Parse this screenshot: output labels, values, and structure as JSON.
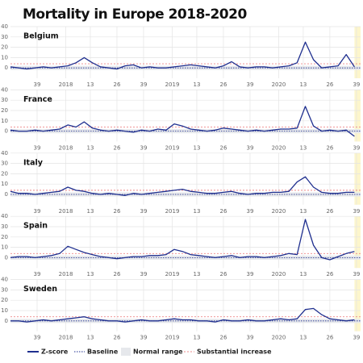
{
  "title": "Mortality in Europe  2018-2020",
  "legend": [
    "Z-score",
    "Baseline",
    "Normal range",
    "Substantial increase"
  ],
  "chart_data": [
    {
      "type": "line",
      "title": "Belgium",
      "color": "#1f2f8f",
      "x": [
        0,
        4,
        8,
        12,
        16,
        20,
        24,
        28,
        32,
        36,
        40,
        44,
        48,
        52,
        56,
        60,
        64,
        68,
        72,
        76,
        80,
        84,
        88,
        92,
        96,
        100,
        104,
        108,
        112,
        116,
        120,
        124,
        128,
        132,
        136,
        140,
        144,
        148,
        152,
        156,
        160,
        164,
        168
      ],
      "values": [
        1,
        0,
        -1,
        0,
        1,
        0,
        1,
        2,
        5,
        10,
        5,
        1,
        0,
        -1,
        2,
        3,
        0,
        1,
        0,
        0,
        1,
        2,
        3,
        2,
        1,
        0,
        2,
        6,
        1,
        0,
        1,
        1,
        0,
        1,
        2,
        5,
        25,
        8,
        0,
        1,
        2,
        13,
        1
      ],
      "xlim": [
        0,
        171
      ],
      "ylim": [
        -10,
        40
      ],
      "yticks": [
        0,
        10,
        20,
        30,
        40
      ],
      "xticks": [
        {
          "value": 13,
          "label": "39"
        },
        {
          "value": 27,
          "label": "2018"
        },
        {
          "value": 39,
          "label": "13"
        },
        {
          "value": 52,
          "label": "26"
        },
        {
          "value": 65,
          "label": "39"
        },
        {
          "value": 79,
          "label": "2019"
        },
        {
          "value": 91,
          "label": "13"
        },
        {
          "value": 104,
          "label": "26"
        },
        {
          "value": 117,
          "label": "39"
        },
        {
          "value": 131,
          "label": "2020"
        },
        {
          "value": 143,
          "label": "13"
        },
        {
          "value": 156,
          "label": "26"
        },
        {
          "value": 169,
          "label": "39"
        }
      ],
      "baseline": 0,
      "normal_range": [
        -2,
        2
      ],
      "threshold": 4,
      "shaded_xrange": [
        168,
        171
      ],
      "grid": true
    },
    {
      "type": "line",
      "title": "France",
      "color": "#1f2f8f",
      "x": [
        0,
        4,
        8,
        12,
        16,
        20,
        24,
        28,
        32,
        36,
        40,
        44,
        48,
        52,
        56,
        60,
        64,
        68,
        72,
        76,
        80,
        84,
        88,
        92,
        96,
        100,
        104,
        108,
        112,
        116,
        120,
        124,
        128,
        132,
        136,
        140,
        144,
        148,
        152,
        156,
        160,
        164,
        168
      ],
      "values": [
        1,
        0,
        0,
        1,
        0,
        1,
        2,
        6,
        4,
        9,
        3,
        1,
        0,
        1,
        0,
        -1,
        1,
        0,
        2,
        1,
        7,
        5,
        2,
        1,
        0,
        1,
        3,
        2,
        1,
        0,
        1,
        0,
        1,
        2,
        2,
        3,
        24,
        5,
        0,
        1,
        0,
        1,
        -5
      ],
      "xlim": [
        0,
        171
      ],
      "ylim": [
        -10,
        40
      ],
      "yticks": [
        0,
        10,
        20,
        30,
        40
      ],
      "xticks": [
        {
          "value": 13,
          "label": "39"
        },
        {
          "value": 27,
          "label": "2018"
        },
        {
          "value": 39,
          "label": "13"
        },
        {
          "value": 52,
          "label": "26"
        },
        {
          "value": 65,
          "label": "39"
        },
        {
          "value": 79,
          "label": "2019"
        },
        {
          "value": 91,
          "label": "13"
        },
        {
          "value": 104,
          "label": "26"
        },
        {
          "value": 117,
          "label": "39"
        },
        {
          "value": 131,
          "label": "2020"
        },
        {
          "value": 143,
          "label": "13"
        },
        {
          "value": 156,
          "label": "26"
        },
        {
          "value": 169,
          "label": "39"
        }
      ],
      "baseline": 0,
      "normal_range": [
        -2,
        2
      ],
      "threshold": 4,
      "shaded_xrange": [
        168,
        171
      ],
      "grid": true
    },
    {
      "type": "line",
      "title": "Italy",
      "color": "#1f2f8f",
      "x": [
        0,
        4,
        8,
        12,
        16,
        20,
        24,
        28,
        32,
        36,
        40,
        44,
        48,
        52,
        56,
        60,
        64,
        68,
        72,
        76,
        80,
        84,
        88,
        92,
        96,
        100,
        104,
        108,
        112,
        116,
        120,
        124,
        128,
        132,
        136,
        140,
        144,
        148,
        152,
        156,
        160,
        164,
        168
      ],
      "values": [
        3,
        1,
        1,
        0,
        1,
        2,
        3,
        7,
        4,
        3,
        1,
        0,
        1,
        0,
        -1,
        1,
        0,
        1,
        2,
        3,
        4,
        5,
        3,
        2,
        1,
        1,
        2,
        3,
        1,
        0,
        1,
        1,
        2,
        2,
        3,
        12,
        17,
        7,
        2,
        1,
        1,
        2,
        2
      ],
      "xlim": [
        0,
        171
      ],
      "ylim": [
        -10,
        40
      ],
      "yticks": [
        0,
        10,
        20,
        30,
        40
      ],
      "xticks": [
        {
          "value": 13,
          "label": "39"
        },
        {
          "value": 27,
          "label": "2018"
        },
        {
          "value": 39,
          "label": "13"
        },
        {
          "value": 52,
          "label": "26"
        },
        {
          "value": 65,
          "label": "39"
        },
        {
          "value": 79,
          "label": "2019"
        },
        {
          "value": 91,
          "label": "13"
        },
        {
          "value": 104,
          "label": "26"
        },
        {
          "value": 117,
          "label": "39"
        },
        {
          "value": 131,
          "label": "2020"
        },
        {
          "value": 143,
          "label": "13"
        },
        {
          "value": 156,
          "label": "26"
        },
        {
          "value": 169,
          "label": "39"
        }
      ],
      "baseline": 0,
      "normal_range": [
        -2,
        2
      ],
      "threshold": 4,
      "shaded_xrange": [
        168,
        171
      ],
      "grid": true
    },
    {
      "type": "line",
      "title": "Spain",
      "color": "#1f2f8f",
      "x": [
        0,
        4,
        8,
        12,
        16,
        20,
        24,
        28,
        32,
        36,
        40,
        44,
        48,
        52,
        56,
        60,
        64,
        68,
        72,
        76,
        80,
        84,
        88,
        92,
        96,
        100,
        104,
        108,
        112,
        116,
        120,
        124,
        128,
        132,
        136,
        140,
        144,
        148,
        152,
        156,
        160,
        164,
        168
      ],
      "values": [
        0,
        1,
        1,
        0,
        1,
        2,
        4,
        11,
        8,
        5,
        3,
        1,
        0,
        -1,
        0,
        1,
        1,
        2,
        2,
        3,
        8,
        6,
        3,
        2,
        1,
        0,
        1,
        2,
        0,
        1,
        1,
        0,
        1,
        2,
        4,
        3,
        37,
        12,
        0,
        -2,
        1,
        4,
        6
      ],
      "xlim": [
        0,
        171
      ],
      "ylim": [
        -10,
        40
      ],
      "yticks": [
        0,
        10,
        20,
        30,
        40
      ],
      "xticks": [
        {
          "value": 13,
          "label": "39"
        },
        {
          "value": 27,
          "label": "2018"
        },
        {
          "value": 39,
          "label": "13"
        },
        {
          "value": 52,
          "label": "26"
        },
        {
          "value": 65,
          "label": "39"
        },
        {
          "value": 79,
          "label": "2019"
        },
        {
          "value": 91,
          "label": "13"
        },
        {
          "value": 104,
          "label": "26"
        },
        {
          "value": 117,
          "label": "39"
        },
        {
          "value": 131,
          "label": "2020"
        },
        {
          "value": 143,
          "label": "13"
        },
        {
          "value": 156,
          "label": "26"
        },
        {
          "value": 169,
          "label": "39"
        }
      ],
      "baseline": 0,
      "normal_range": [
        -2,
        2
      ],
      "threshold": 4,
      "shaded_xrange": [
        168,
        171
      ],
      "grid": true
    },
    {
      "type": "line",
      "title": "Sweden",
      "color": "#1f2f8f",
      "x": [
        0,
        4,
        8,
        12,
        16,
        20,
        24,
        28,
        32,
        36,
        40,
        44,
        48,
        52,
        56,
        60,
        64,
        68,
        72,
        76,
        80,
        84,
        88,
        92,
        96,
        100,
        104,
        108,
        112,
        116,
        120,
        124,
        128,
        132,
        136,
        140,
        144,
        148,
        152,
        156,
        160,
        164,
        168
      ],
      "values": [
        0,
        0,
        -1,
        0,
        1,
        0,
        1,
        2,
        3,
        4,
        2,
        1,
        0,
        0,
        -1,
        0,
        1,
        0,
        0,
        1,
        2,
        1,
        1,
        0,
        0,
        -1,
        1,
        0,
        0,
        1,
        0,
        0,
        1,
        2,
        1,
        2,
        11,
        12,
        6,
        2,
        1,
        0,
        1
      ],
      "xlim": [
        0,
        171
      ],
      "ylim": [
        -10,
        40
      ],
      "yticks": [
        0,
        10,
        20,
        30,
        40
      ],
      "xticks": [
        {
          "value": 13,
          "label": "39"
        },
        {
          "value": 27,
          "label": "2018"
        },
        {
          "value": 39,
          "label": "13"
        },
        {
          "value": 52,
          "label": "26"
        },
        {
          "value": 65,
          "label": "39"
        },
        {
          "value": 79,
          "label": "2019"
        },
        {
          "value": 91,
          "label": "13"
        },
        {
          "value": 104,
          "label": "26"
        },
        {
          "value": 117,
          "label": "39"
        },
        {
          "value": 131,
          "label": "2020"
        },
        {
          "value": 143,
          "label": "13"
        },
        {
          "value": 156,
          "label": "26"
        },
        {
          "value": 169,
          "label": "39"
        }
      ],
      "baseline": 0,
      "normal_range": [
        -2,
        2
      ],
      "threshold": 4,
      "shaded_xrange": [
        168,
        171
      ],
      "grid": true
    }
  ]
}
